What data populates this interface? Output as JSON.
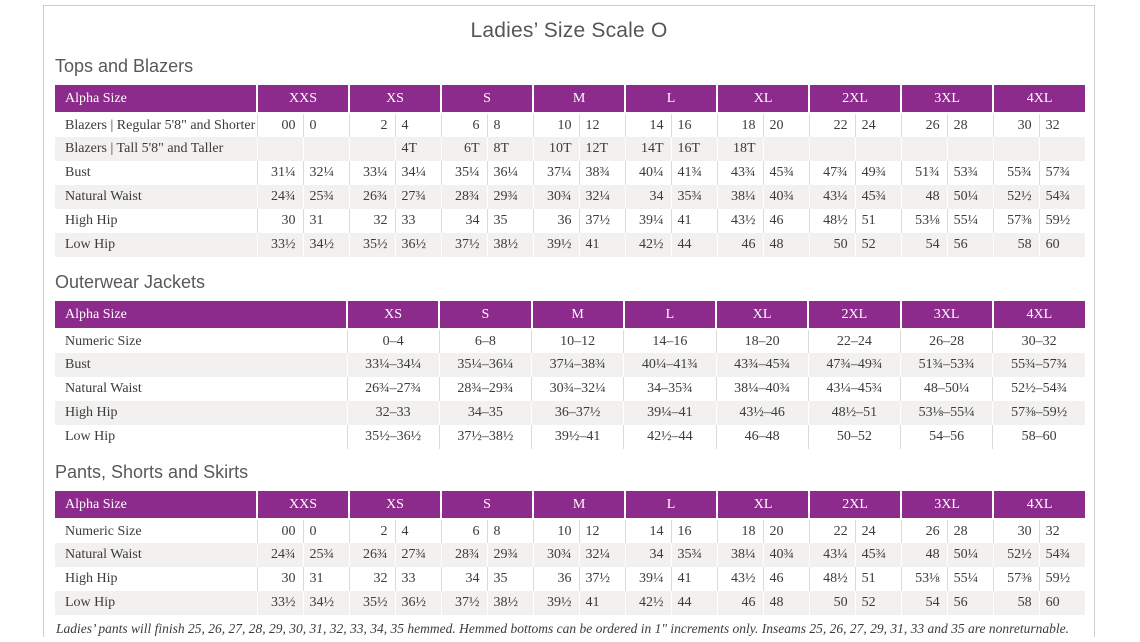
{
  "page": {
    "title": "Ladies’ Size Scale O",
    "footnote": "Ladies’ pants will finish 25, 26, 27, 28, 29, 30, 31, 32, 33, 34, 35 hemmed. Hemmed bottoms can be ordered in 1\" increments only. Inseams 25, 26, 27, 29, 31, 33 and 35 are nonreturnable."
  },
  "colors": {
    "header_bg": "#8C2B8C",
    "stripe": "#F2F1EF",
    "heading_text": "#595959",
    "body_text": "#3B3B3B"
  },
  "tables": [
    {
      "section": "Tops and Blazers",
      "type": "paired",
      "header_label": "Alpha Size",
      "groups": [
        "XXS",
        "XS",
        "S",
        "M",
        "L",
        "XL",
        "2XL",
        "3XL",
        "4XL"
      ],
      "rows": [
        {
          "label": "Blazers  |  Regular 5'8\" and Shorter",
          "values": [
            "00",
            "0",
            "2",
            "4",
            "6",
            "8",
            "10",
            "12",
            "14",
            "16",
            "18",
            "20",
            "22",
            "24",
            "26",
            "28",
            "30",
            "32"
          ]
        },
        {
          "label": "Blazers  |  Tall 5'8\" and Taller",
          "values": [
            "",
            "",
            "",
            "4T",
            "6T",
            "8T",
            "10T",
            "12T",
            "14T",
            "16T",
            "18T",
            "",
            "",
            "",
            "",
            "",
            "",
            ""
          ]
        },
        {
          "label": "Bust",
          "values": [
            "31¼",
            "32¼",
            "33¼",
            "34¼",
            "35¼",
            "36¼",
            "37¼",
            "38¾",
            "40¼",
            "41¾",
            "43¾",
            "45¾",
            "47¾",
            "49¾",
            "51¾",
            "53¾",
            "55¾",
            "57¾"
          ]
        },
        {
          "label": "Natural Waist",
          "values": [
            "24¾",
            "25¾",
            "26¾",
            "27¾",
            "28¾",
            "29¾",
            "30¾",
            "32¼",
            "34",
            "35¾",
            "38¼",
            "40¾",
            "43¼",
            "45¾",
            "48",
            "50¼",
            "52½",
            "54¾"
          ]
        },
        {
          "label": "High Hip",
          "values": [
            "30",
            "31",
            "32",
            "33",
            "34",
            "35",
            "36",
            "37½",
            "39¼",
            "41",
            "43½",
            "46",
            "48½",
            "51",
            "53⅛",
            "55¼",
            "57⅜",
            "59½"
          ]
        },
        {
          "label": "Low Hip",
          "values": [
            "33½",
            "34½",
            "35½",
            "36½",
            "37½",
            "38½",
            "39½",
            "41",
            "42½",
            "44",
            "46",
            "48",
            "50",
            "52",
            "54",
            "56",
            "58",
            "60"
          ]
        }
      ]
    },
    {
      "section": "Outerwear Jackets",
      "type": "single",
      "header_label": "Alpha Size",
      "groups": [
        "XS",
        "S",
        "M",
        "L",
        "XL",
        "2XL",
        "3XL",
        "4XL"
      ],
      "rows": [
        {
          "label": "Numeric Size",
          "values": [
            "0–4",
            "6–8",
            "10–12",
            "14–16",
            "18–20",
            "22–24",
            "26–28",
            "30–32"
          ]
        },
        {
          "label": "Bust",
          "values": [
            "33¼–34¼",
            "35¼–36¼",
            "37¼–38¾",
            "40¼–41¾",
            "43¾–45¾",
            "47¾–49¾",
            "51¾–53¾",
            "55¾–57¾"
          ]
        },
        {
          "label": "Natural Waist",
          "values": [
            "26¾–27¾",
            "28¾–29¾",
            "30¾–32¼",
            "34–35¾",
            "38¼–40¾",
            "43¼–45¾",
            "48–50¼",
            "52½–54¾"
          ]
        },
        {
          "label": "High Hip",
          "values": [
            "32–33",
            "34–35",
            "36–37½",
            "39¼–41",
            "43½–46",
            "48½–51",
            "53⅛–55¼",
            "57⅜–59½"
          ]
        },
        {
          "label": "Low Hip",
          "values": [
            "35½–36½",
            "37½–38½",
            "39½–41",
            "42½–44",
            "46–48",
            "50–52",
            "54–56",
            "58–60"
          ]
        }
      ]
    },
    {
      "section": "Pants, Shorts and Skirts",
      "type": "paired",
      "header_label": "Alpha Size",
      "groups": [
        "XXS",
        "XS",
        "S",
        "M",
        "L",
        "XL",
        "2XL",
        "3XL",
        "4XL"
      ],
      "rows": [
        {
          "label": "Numeric Size",
          "values": [
            "00",
            "0",
            "2",
            "4",
            "6",
            "8",
            "10",
            "12",
            "14",
            "16",
            "18",
            "20",
            "22",
            "24",
            "26",
            "28",
            "30",
            "32"
          ]
        },
        {
          "label": "Natural Waist",
          "values": [
            "24¾",
            "25¾",
            "26¾",
            "27¾",
            "28¾",
            "29¾",
            "30¾",
            "32¼",
            "34",
            "35¾",
            "38¼",
            "40¾",
            "43¼",
            "45¾",
            "48",
            "50¼",
            "52½",
            "54¾"
          ]
        },
        {
          "label": "High Hip",
          "values": [
            "30",
            "31",
            "32",
            "33",
            "34",
            "35",
            "36",
            "37½",
            "39¼",
            "41",
            "43½",
            "46",
            "48½",
            "51",
            "53⅛",
            "55¼",
            "57⅜",
            "59½"
          ]
        },
        {
          "label": "Low Hip",
          "values": [
            "33½",
            "34½",
            "35½",
            "36½",
            "37½",
            "38½",
            "39½",
            "41",
            "42½",
            "44",
            "46",
            "48",
            "50",
            "52",
            "54",
            "56",
            "58",
            "60"
          ]
        }
      ]
    }
  ]
}
